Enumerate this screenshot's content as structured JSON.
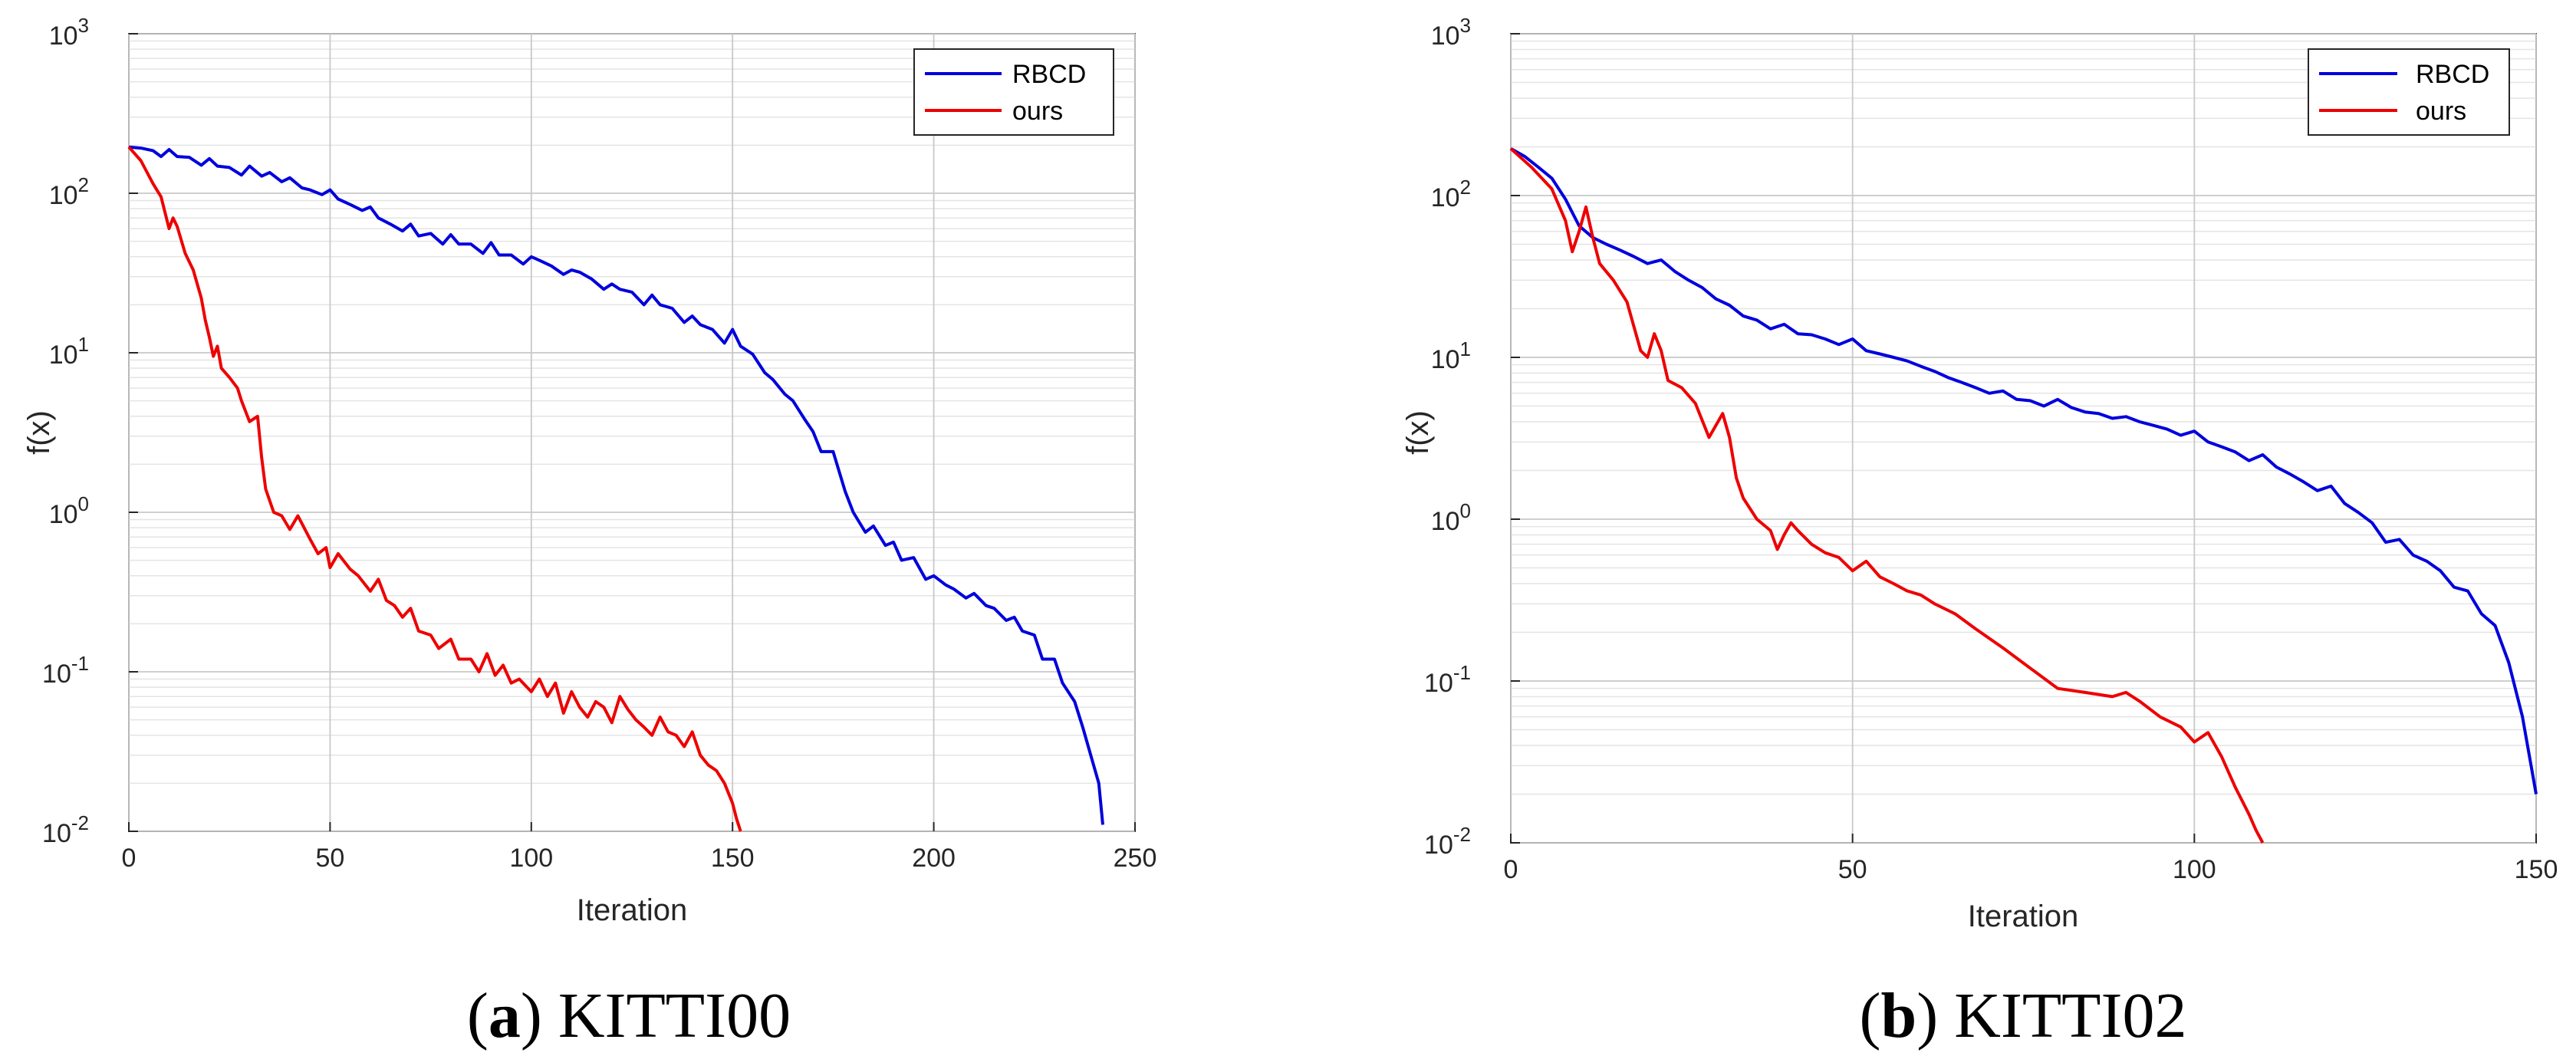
{
  "chart_data": [
    {
      "type": "line",
      "caption_letter": "a",
      "caption_title": "KITTI00",
      "xlabel": "Iteration",
      "ylabel": "f(x)",
      "xlim": [
        0,
        250
      ],
      "ylim": [
        0.01,
        1000
      ],
      "yscale": "log",
      "grid": true,
      "legend_position": "top-right",
      "xticks": [
        "0",
        "50",
        "100",
        "150",
        "200",
        "250"
      ],
      "yticks": [
        {
          "base": "10",
          "exp": "-2"
        },
        {
          "base": "10",
          "exp": "-1"
        },
        {
          "base": "10",
          "exp": "0"
        },
        {
          "base": "10",
          "exp": "1"
        },
        {
          "base": "10",
          "exp": "2"
        },
        {
          "base": "10",
          "exp": "3"
        }
      ],
      "series": [
        {
          "name": "RBCD",
          "color": "#0000dd",
          "x": [
            0,
            3,
            6,
            8,
            10,
            12,
            15,
            18,
            20,
            22,
            25,
            28,
            30,
            33,
            35,
            38,
            40,
            43,
            45,
            48,
            50,
            52,
            55,
            58,
            60,
            62,
            65,
            68,
            70,
            72,
            75,
            78,
            80,
            82,
            85,
            88,
            90,
            92,
            95,
            98,
            100,
            102,
            105,
            108,
            110,
            112,
            115,
            118,
            120,
            122,
            125,
            128,
            130,
            132,
            135,
            138,
            140,
            142,
            145,
            148,
            150,
            152,
            155,
            158,
            160,
            163,
            165,
            168,
            170,
            172,
            175,
            178,
            180,
            183,
            185,
            188,
            190,
            192,
            195,
            198,
            200,
            203,
            205,
            208,
            210,
            213,
            215,
            218,
            220,
            222,
            225,
            227,
            230,
            232,
            235,
            237,
            239,
            241,
            242
          ],
          "y": [
            195,
            192,
            185,
            170,
            188,
            170,
            168,
            150,
            165,
            148,
            145,
            130,
            148,
            128,
            135,
            118,
            125,
            108,
            105,
            98,
            105,
            92,
            85,
            78,
            82,
            70,
            64,
            58,
            64,
            54,
            56,
            48,
            55,
            48,
            48,
            42,
            49,
            41,
            41,
            36,
            40,
            38,
            35,
            31,
            33,
            32,
            29,
            25,
            27,
            25,
            24,
            20,
            23,
            20,
            19,
            15.5,
            17,
            15,
            14,
            11.5,
            14,
            11,
            9.8,
            7.5,
            6.8,
            5.5,
            5.0,
            3.8,
            3.2,
            2.4,
            2.4,
            1.35,
            1.0,
            0.75,
            0.82,
            0.62,
            0.65,
            0.5,
            0.52,
            0.38,
            0.4,
            0.35,
            0.33,
            0.29,
            0.31,
            0.26,
            0.25,
            0.21,
            0.22,
            0.18,
            0.17,
            0.12,
            0.12,
            0.085,
            0.065,
            0.045,
            0.03,
            0.02,
            0.011
          ]
        },
        {
          "name": "ours",
          "color": "#ee0000",
          "x": [
            0,
            3,
            6,
            8,
            10,
            11,
            12,
            14,
            16,
            18,
            19,
            20,
            21,
            22,
            23,
            25,
            27,
            28,
            30,
            32,
            33,
            34,
            36,
            38,
            40,
            42,
            45,
            47,
            49,
            50,
            52,
            55,
            57,
            60,
            62,
            64,
            66,
            68,
            70,
            72,
            75,
            77,
            80,
            82,
            85,
            87,
            89,
            91,
            93,
            95,
            97,
            100,
            102,
            104,
            106,
            108,
            110,
            112,
            114,
            116,
            118,
            120,
            122,
            124,
            126,
            128,
            130,
            132,
            134,
            136,
            138,
            140,
            142,
            144,
            146,
            148,
            150,
            151,
            152
          ],
          "y": [
            195,
            160,
            115,
            95,
            60,
            70,
            62,
            42,
            33,
            22,
            16,
            12.5,
            9.5,
            11,
            8,
            7,
            6,
            5,
            3.7,
            4.0,
            2.2,
            1.4,
            1.0,
            0.95,
            0.78,
            0.95,
            0.68,
            0.55,
            0.6,
            0.45,
            0.55,
            0.44,
            0.4,
            0.32,
            0.38,
            0.28,
            0.26,
            0.22,
            0.25,
            0.18,
            0.17,
            0.14,
            0.16,
            0.12,
            0.12,
            0.1,
            0.13,
            0.095,
            0.11,
            0.085,
            0.09,
            0.075,
            0.09,
            0.07,
            0.085,
            0.055,
            0.075,
            0.06,
            0.052,
            0.065,
            0.06,
            0.048,
            0.07,
            0.058,
            0.05,
            0.045,
            0.04,
            0.052,
            0.042,
            0.04,
            0.034,
            0.042,
            0.03,
            0.026,
            0.024,
            0.02,
            0.015,
            0.012,
            0.01
          ]
        }
      ]
    },
    {
      "type": "line",
      "caption_letter": "b",
      "caption_title": "KITTI02",
      "xlabel": "Iteration",
      "ylabel": "f(x)",
      "xlim": [
        0,
        150
      ],
      "ylim": [
        0.01,
        1000
      ],
      "yscale": "log",
      "grid": true,
      "legend_position": "top-right",
      "xticks": [
        "0",
        "50",
        "100",
        "150"
      ],
      "yticks": [
        {
          "base": "10",
          "exp": "-2"
        },
        {
          "base": "10",
          "exp": "-1"
        },
        {
          "base": "10",
          "exp": "0"
        },
        {
          "base": "10",
          "exp": "1"
        },
        {
          "base": "10",
          "exp": "2"
        },
        {
          "base": "10",
          "exp": "3"
        }
      ],
      "series": [
        {
          "name": "RBCD",
          "color": "#0000dd",
          "x": [
            0,
            2,
            4,
            6,
            8,
            10,
            12,
            14,
            16,
            18,
            20,
            22,
            24,
            26,
            28,
            30,
            32,
            34,
            36,
            38,
            40,
            42,
            44,
            46,
            48,
            50,
            52,
            54,
            56,
            58,
            60,
            62,
            64,
            66,
            68,
            70,
            72,
            74,
            76,
            78,
            80,
            82,
            84,
            86,
            88,
            90,
            92,
            94,
            96,
            98,
            100,
            102,
            104,
            106,
            108,
            110,
            112,
            114,
            116,
            118,
            120,
            122,
            124,
            126,
            128,
            130,
            132,
            134,
            136,
            138,
            140,
            142,
            144,
            146,
            148,
            150
          ],
          "y": [
            195,
            175,
            150,
            128,
            95,
            65,
            55,
            50,
            46,
            42,
            38,
            40,
            34,
            30,
            27,
            23,
            21,
            18,
            17,
            15,
            16,
            14,
            13.8,
            13,
            12,
            13,
            11,
            10.5,
            10,
            9.5,
            8.8,
            8.2,
            7.5,
            7.0,
            6.5,
            6.0,
            6.2,
            5.5,
            5.4,
            5.0,
            5.5,
            4.9,
            4.6,
            4.5,
            4.2,
            4.3,
            4.0,
            3.8,
            3.6,
            3.3,
            3.5,
            3.0,
            2.8,
            2.6,
            2.3,
            2.5,
            2.1,
            1.9,
            1.7,
            1.5,
            1.6,
            1.25,
            1.1,
            0.95,
            0.72,
            0.75,
            0.6,
            0.55,
            0.48,
            0.38,
            0.36,
            0.26,
            0.22,
            0.13,
            0.06,
            0.02
          ]
        },
        {
          "name": "ours",
          "color": "#ee0000",
          "x": [
            0,
            3,
            6,
            8,
            9,
            10,
            11,
            12,
            13,
            15,
            17,
            19,
            20,
            21,
            22,
            23,
            25,
            27,
            29,
            31,
            32,
            33,
            34,
            36,
            38,
            39,
            40,
            41,
            42,
            44,
            46,
            48,
            50,
            52,
            54,
            56,
            58,
            60,
            62,
            65,
            68,
            72,
            76,
            80,
            84,
            88,
            90,
            92,
            95,
            98,
            100,
            102,
            104,
            106,
            108,
            109,
            110
          ],
          "y": [
            195,
            150,
            110,
            70,
            45,
            60,
            85,
            55,
            38,
            30,
            22,
            11,
            10,
            14,
            11,
            7.2,
            6.5,
            5.2,
            3.2,
            4.5,
            3.2,
            1.8,
            1.35,
            1.0,
            0.85,
            0.65,
            0.8,
            0.95,
            0.85,
            0.7,
            0.62,
            0.58,
            0.48,
            0.55,
            0.44,
            0.4,
            0.36,
            0.34,
            0.3,
            0.26,
            0.21,
            0.16,
            0.12,
            0.09,
            0.085,
            0.08,
            0.085,
            0.075,
            0.06,
            0.052,
            0.042,
            0.048,
            0.034,
            0.022,
            0.015,
            0.012,
            0.01
          ]
        }
      ]
    }
  ]
}
